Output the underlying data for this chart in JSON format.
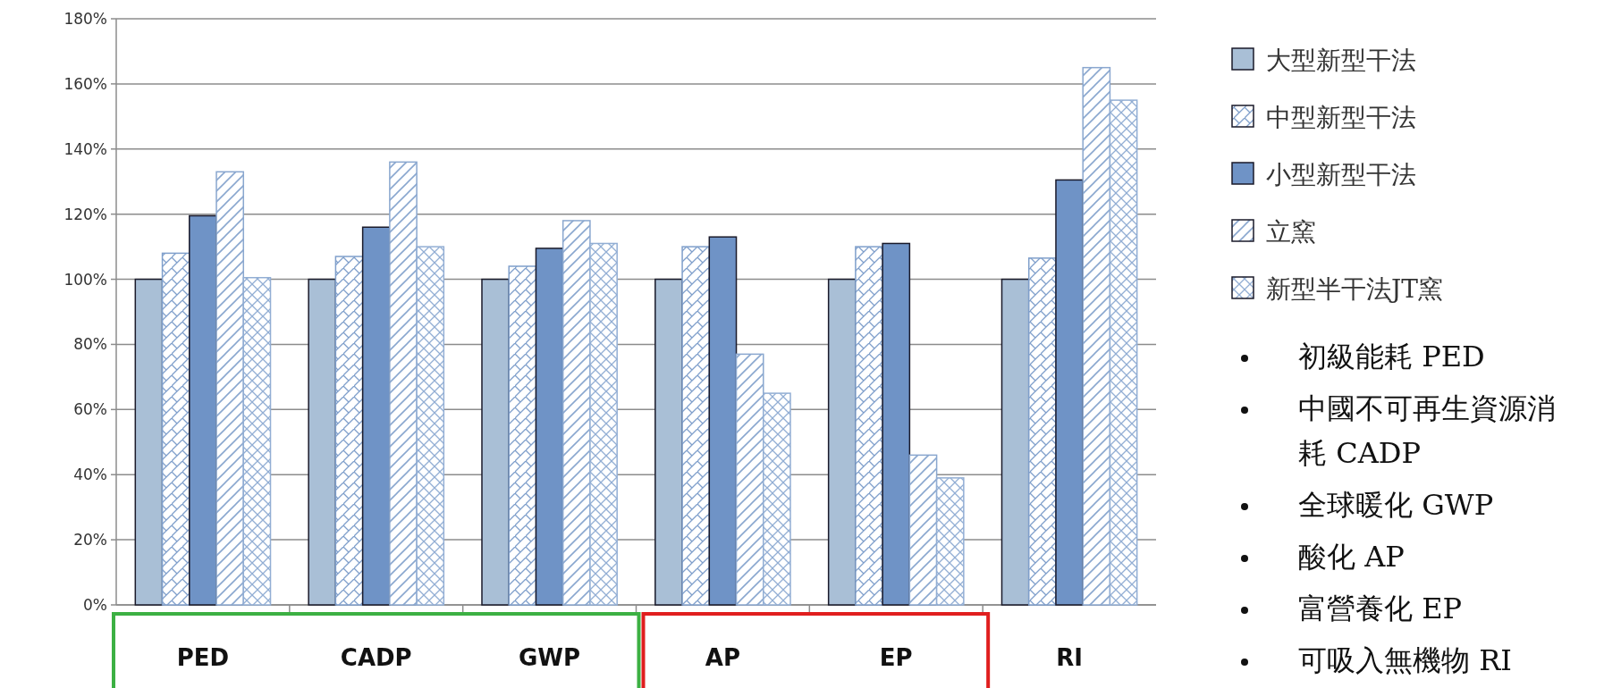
{
  "chart_data": {
    "type": "bar",
    "categories": [
      "PED",
      "CADP",
      "GWP",
      "AP",
      "EP",
      "RI"
    ],
    "series": [
      {
        "name": "大型新型干法",
        "color": "#a9bfd6",
        "values": [
          100,
          100,
          100,
          100,
          100,
          100
        ]
      },
      {
        "name": "中型新型干法",
        "color": "#7f9fcb",
        "values": [
          108,
          107,
          104,
          110,
          110,
          106.5
        ]
      },
      {
        "name": "小型新型干法",
        "color": "#6f93c6",
        "values": [
          119.5,
          116,
          109.5,
          113,
          111,
          130.5
        ]
      },
      {
        "name": "立窯",
        "color": "#8aa7cf",
        "values": [
          133,
          136,
          118,
          77,
          46,
          165
        ]
      },
      {
        "name": "新型半干法JT窯",
        "color": "#92aed4",
        "values": [
          100.5,
          110,
          111,
          65,
          39,
          155
        ]
      }
    ],
    "ylim": [
      0,
      180
    ],
    "yticks": [
      {
        "value": 0,
        "label": "0%"
      },
      {
        "value": 20,
        "label": "20%"
      },
      {
        "value": 40,
        "label": "40%"
      },
      {
        "value": 60,
        "label": "60%"
      },
      {
        "value": 80,
        "label": "80%"
      },
      {
        "value": 100,
        "label": "100%"
      },
      {
        "value": 120,
        "label": "120%"
      },
      {
        "value": 140,
        "label": "140%"
      },
      {
        "value": 160,
        "label": "160%"
      },
      {
        "value": 180,
        "label": "180%"
      }
    ],
    "grid": "y",
    "legend": "right",
    "annotations": [
      "初級能耗 PED",
      "中國不可再生資源消耗 CADP",
      "全球暖化 GWP",
      "酸化 AP",
      "富營養化 EP",
      "可吸入無機物 RI"
    ]
  }
}
